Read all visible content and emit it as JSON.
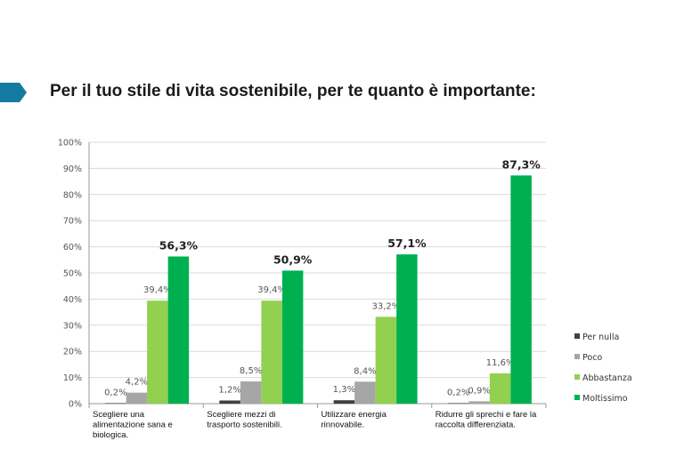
{
  "header": {
    "title": "Per il tuo stile di vita sostenibile, per te quanto è importante:"
  },
  "colors": {
    "accent": "#147aa1",
    "per_nulla": "#404040",
    "poco": "#a6a6a6",
    "abbastanza": "#92d050",
    "moltissimo": "#00b050"
  },
  "chart_data": {
    "type": "bar",
    "title": "Per il tuo stile di vita sostenibile, per te quanto è importante:",
    "categories": [
      [
        "Scegliere una",
        "alimentazione sana e",
        "biologica."
      ],
      [
        "Scegliere mezzi di",
        "trasporto sostenibili."
      ],
      [
        "Utilizzare energia",
        "rinnovabile."
      ],
      [
        "Ridurre gli sprechi e fare la",
        "raccolta differenziata."
      ]
    ],
    "ylim": [
      0,
      100
    ],
    "yticks": [
      "0%",
      "10%",
      "20%",
      "30%",
      "40%",
      "50%",
      "60%",
      "70%",
      "80%",
      "90%",
      "100%"
    ],
    "xlabel": "",
    "ylabel": "",
    "legend_position": "right",
    "series": [
      {
        "name": "Per nulla",
        "color": "#404040",
        "values": [
          0.2,
          1.2,
          1.3,
          0.2
        ],
        "labels": [
          "0,2%",
          "1,2%",
          "1,3%",
          "0,2%"
        ]
      },
      {
        "name": "Poco",
        "color": "#a6a6a6",
        "values": [
          4.2,
          8.5,
          8.4,
          0.9
        ],
        "labels": [
          "4,2%",
          "8,5%",
          "8,4%",
          "0,9%"
        ]
      },
      {
        "name": "Abbastanza",
        "color": "#92d050",
        "values": [
          39.4,
          39.4,
          33.2,
          11.6
        ],
        "labels": [
          "39,4%",
          "39,4%",
          "33,2%",
          "11,6%"
        ]
      },
      {
        "name": "Moltissimo",
        "color": "#00b050",
        "values": [
          56.3,
          50.9,
          57.1,
          87.3
        ],
        "labels": [
          "56,3%",
          "50,9%",
          "57,1%",
          "87,3%"
        ]
      }
    ]
  }
}
